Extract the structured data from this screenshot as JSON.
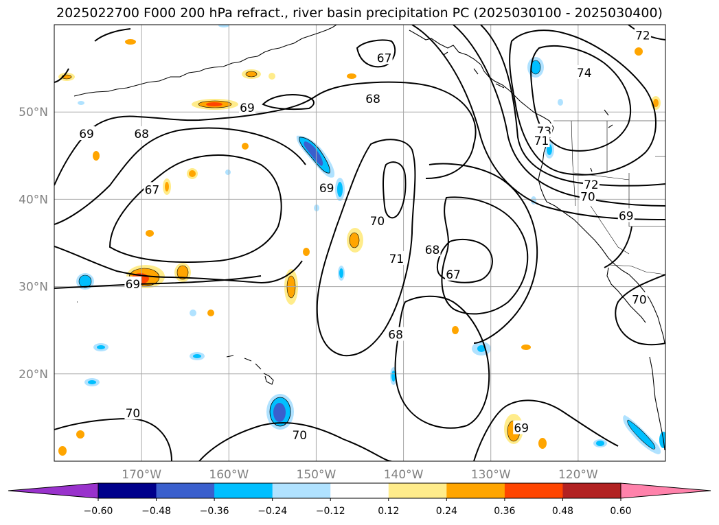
{
  "title": "2025022700 F000 200 hPa refract., river basin precipitation PC (2025030100 - 2025030400)",
  "map": {
    "lat_range": [
      10,
      60
    ],
    "lon_range": [
      -180,
      -110
    ],
    "gridlines": true,
    "lat_ticks": [
      {
        "value": 20,
        "label": "20°N"
      },
      {
        "value": 30,
        "label": "30°N"
      },
      {
        "value": 40,
        "label": "40°N"
      },
      {
        "value": 50,
        "label": "50°N"
      }
    ],
    "lon_ticks": [
      {
        "value": -170,
        "label": "170°W"
      },
      {
        "value": -160,
        "label": "160°W"
      },
      {
        "value": -150,
        "label": "150°W"
      },
      {
        "value": -140,
        "label": "140°W"
      },
      {
        "value": -130,
        "label": "130°W"
      },
      {
        "value": -120,
        "label": "120°W"
      }
    ],
    "contour_labels": [
      {
        "text": "67",
        "lon": -142.2,
        "lat": 56.2
      },
      {
        "text": "68",
        "lon": -143.5,
        "lat": 51.5
      },
      {
        "text": "69",
        "lon": -157.9,
        "lat": 50.5
      },
      {
        "text": "69",
        "lon": -176.3,
        "lat": 47.5
      },
      {
        "text": "68",
        "lon": -170,
        "lat": 47.5
      },
      {
        "text": "67",
        "lon": -168.8,
        "lat": 41.1
      },
      {
        "text": "69",
        "lon": -148.8,
        "lat": 41.3
      },
      {
        "text": "70",
        "lon": -143,
        "lat": 37.5
      },
      {
        "text": "71",
        "lon": -140.8,
        "lat": 33.2
      },
      {
        "text": "68",
        "lon": -136.7,
        "lat": 34.2
      },
      {
        "text": "67",
        "lon": -134.3,
        "lat": 31.4
      },
      {
        "text": "68",
        "lon": -140.9,
        "lat": 24.5
      },
      {
        "text": "69",
        "lon": -171,
        "lat": 30.3
      },
      {
        "text": "70",
        "lon": -171,
        "lat": 15.5
      },
      {
        "text": "70",
        "lon": -151.9,
        "lat": 13
      },
      {
        "text": "69",
        "lon": -126.5,
        "lat": 13.8
      },
      {
        "text": "74",
        "lon": -119.3,
        "lat": 54.5
      },
      {
        "text": "73",
        "lon": -123.9,
        "lat": 47.8
      },
      {
        "text": "71",
        "lon": -124.2,
        "lat": 46.7
      },
      {
        "text": "72",
        "lon": -112.6,
        "lat": 58.8
      },
      {
        "text": "72",
        "lon": -118.5,
        "lat": 41.7
      },
      {
        "text": "70",
        "lon": -118.9,
        "lat": 40.3
      },
      {
        "text": "69",
        "lon": -114.5,
        "lat": 38.1
      },
      {
        "text": "70",
        "lon": -113,
        "lat": 28.5
      }
    ]
  },
  "colorbar": {
    "levels": [
      -0.6,
      -0.48,
      -0.36,
      -0.24,
      -0.12,
      0.12,
      0.24,
      0.36,
      0.48,
      0.6
    ],
    "tick_labels": [
      "−0.60",
      "−0.48",
      "−0.36",
      "−0.24",
      "−0.12",
      "0.12",
      "0.24",
      "0.36",
      "0.48",
      "0.60"
    ],
    "colors": [
      "#9932cc",
      "#00008b",
      "#3a5fcd",
      "#00bfff",
      "#b0e2ff",
      "#ffffff",
      "#ffec8b",
      "#ffa500",
      "#ff4500",
      "#b22222",
      "#ff82ab"
    ],
    "extend": "both"
  }
}
